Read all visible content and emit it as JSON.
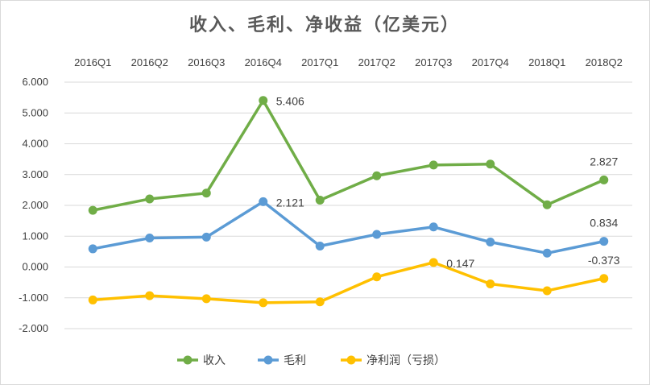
{
  "chart_data": {
    "type": "line",
    "title": "收入、毛利、净收益（亿美元）",
    "categories": [
      "2016Q1",
      "2016Q2",
      "2016Q3",
      "2016Q4",
      "2017Q1",
      "2017Q2",
      "2017Q3",
      "2017Q4",
      "2018Q1",
      "2018Q2"
    ],
    "ylim": [
      -2,
      6
    ],
    "y_ticks": [
      "6.000",
      "5.000",
      "4.000",
      "3.000",
      "2.000",
      "1.000",
      "0.000",
      "-1.000",
      "-2.000"
    ],
    "grid": true,
    "x_axis_position": "top",
    "legend_position": "bottom",
    "series": [
      {
        "name": "收入",
        "color": "#70ad47",
        "values": [
          1.84,
          2.21,
          2.4,
          5.406,
          2.17,
          2.96,
          3.31,
          3.34,
          2.02,
          2.827
        ]
      },
      {
        "name": "毛利",
        "color": "#5b9bd5",
        "values": [
          0.59,
          0.94,
          0.97,
          2.121,
          0.68,
          1.06,
          1.3,
          0.81,
          0.45,
          0.834
        ]
      },
      {
        "name": "净利润（亏损）",
        "color": "#ffc000",
        "values": [
          -1.07,
          -0.93,
          -1.03,
          -1.16,
          -1.13,
          -0.32,
          0.147,
          -0.55,
          -0.77,
          -0.373
        ]
      }
    ],
    "data_labels": [
      {
        "series": 0,
        "index": 3,
        "text": "5.406"
      },
      {
        "series": 0,
        "index": 9,
        "text": "2.827"
      },
      {
        "series": 1,
        "index": 3,
        "text": "2.121"
      },
      {
        "series": 1,
        "index": 9,
        "text": "0.834"
      },
      {
        "series": 2,
        "index": 6,
        "text": "0.147"
      },
      {
        "series": 2,
        "index": 9,
        "text": "-0.373"
      }
    ]
  }
}
